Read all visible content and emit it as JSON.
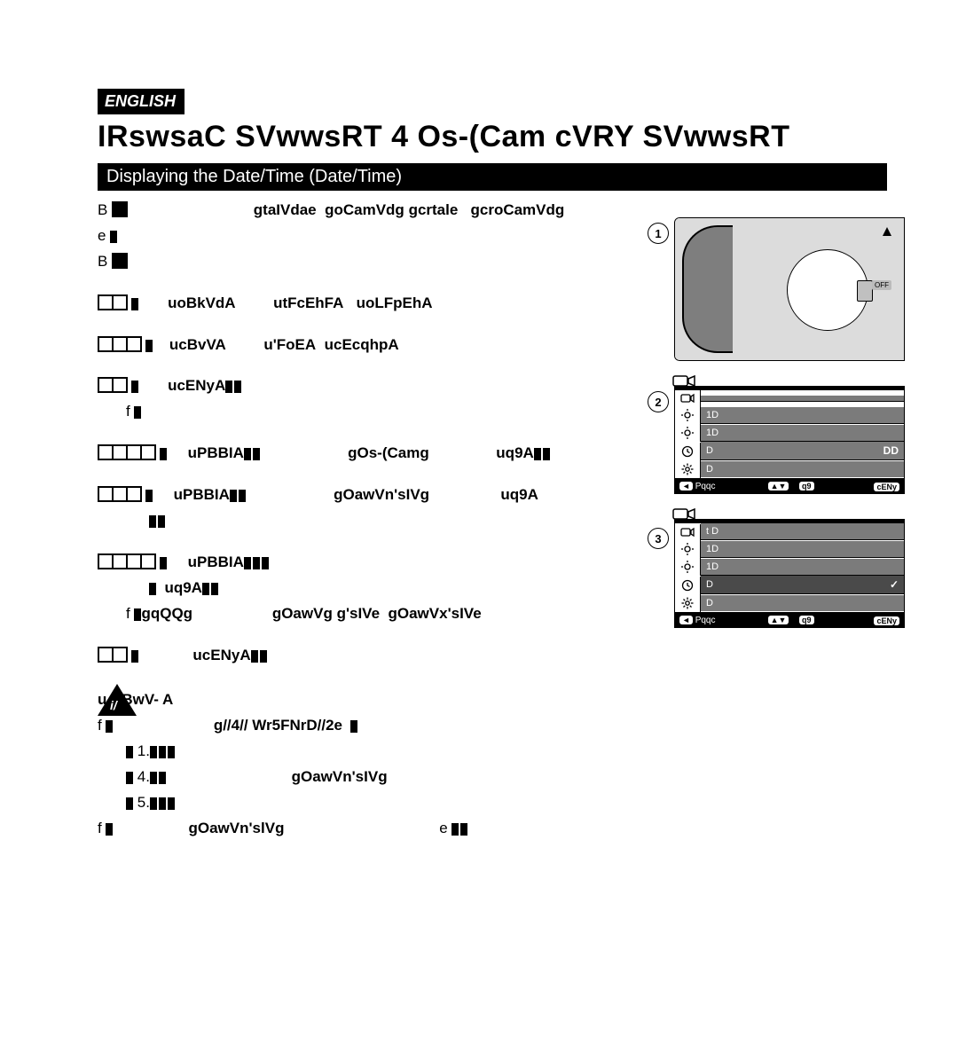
{
  "lang_badge": "ENGLISH",
  "main_heading": "IRswsaC SVwwsRT 4 Os-(Cam cVRY SVwwsRT",
  "section_bar": "Displaying the Date/Time (Date/Time)",
  "intro_lines": [
    "B",
    "B"
  ],
  "intro_tokens": [
    "gtaIVdae",
    "goCamVdg",
    "gcrtale",
    "gcroCamVdg",
    "e"
  ],
  "steps": [
    {
      "no": "1.",
      "pre": "uoBkVdA",
      "mid": "utFcEhFA",
      "tail": "uoLFpEhA"
    },
    {
      "no": "2.",
      "pre": "ucBvVA",
      "mid": "u'FoEA",
      "tail": "ucEcqhpA"
    },
    {
      "no": "3.",
      "pre": "ucENyA",
      "sub": "f"
    },
    {
      "no": "4.",
      "pre": "uPBBIA",
      "mid": "gOs-(Camg",
      "tail": "uq9A"
    },
    {
      "no": "5.",
      "pre": "uPBBIA",
      "mid": "gOawVn'sIVg",
      "tail": "uq9A"
    },
    {
      "no": "6.",
      "pre": "uPBBIA",
      "line2_tokens": [
        "uq9A"
      ],
      "sub2_tokens": [
        "f",
        "gqQQg",
        "gOawVg",
        "g'sIVe",
        "gOawVx'sIVe"
      ]
    },
    {
      "no": "7.",
      "pre": "ucENyA"
    }
  ],
  "notes_heading": "u NBwV- A",
  "notes": [
    {
      "bullet": "f",
      "tokens_a": [
        "g//4//  Wr5FNrD//2e"
      ],
      "subs": [
        {
          "n": "1.",
          "t": ""
        },
        {
          "n": "4.",
          "t": "gOawVn'sIVg"
        },
        {
          "n": "5.",
          "t": ""
        }
      ]
    },
    {
      "bullet": "f",
      "token": "gOawVn'slVg",
      "tail": "e"
    }
  ],
  "triangle_label": "i/",
  "illu": {
    "power_off_label": "OFF",
    "circle1": "1",
    "circle2": "2",
    "circle3": "3"
  },
  "osd1": {
    "rows": [
      {
        "icon": "cam",
        "label": "",
        "value": ""
      },
      {
        "icon": "sun",
        "label": "1D",
        "value": ""
      },
      {
        "icon": "sun",
        "label": "1D",
        "value": ""
      },
      {
        "icon": "clock",
        "label": "D",
        "value": "DD"
      },
      {
        "icon": "gear",
        "label": "D",
        "value": ""
      }
    ],
    "nav": {
      "left": "Pqqc",
      "mid": "q9",
      "right": "cENy"
    }
  },
  "osd2": {
    "rows": [
      {
        "icon": "cam",
        "label": "t D",
        "value": ""
      },
      {
        "icon": "sun",
        "label": "1D",
        "value": ""
      },
      {
        "icon": "sun",
        "label": "1D",
        "value": ""
      },
      {
        "icon": "clock",
        "label": "D",
        "value": "✓",
        "selected": true
      },
      {
        "icon": "gear",
        "label": "D",
        "value": ""
      }
    ],
    "nav": {
      "left": "Pqqc",
      "mid": "q9",
      "right": "cENy"
    }
  },
  "colors": {
    "black": "#000000",
    "dark_gray": "#4a4a4a",
    "mid_gray": "#7b7b7b",
    "light_gray": "#dcdcdc",
    "white": "#ffffff"
  }
}
